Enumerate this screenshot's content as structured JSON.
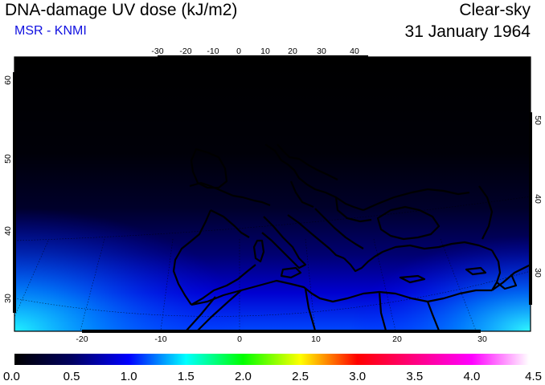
{
  "header": {
    "title": "DNA-damage UV dose (kJ/m2)",
    "source": "MSR - KNMI",
    "condition": "Clear-sky",
    "date": "31 January 1964"
  },
  "map": {
    "top_lon_labels": [
      "-30",
      "-20",
      "-10",
      "0",
      "10",
      "20",
      "30",
      "40"
    ],
    "bottom_lon_labels": [
      "-20",
      "-10",
      "0",
      "10",
      "20",
      "30"
    ],
    "left_lat_labels": [
      "60",
      "50",
      "40",
      "30"
    ],
    "right_lat_labels": [
      "50",
      "40",
      "30"
    ]
  },
  "colorbar": {
    "labels": [
      "0.0",
      "0.5",
      "1.0",
      "1.5",
      "2.0",
      "2.5",
      "3.0",
      "3.5",
      "4.0",
      "4.5"
    ],
    "colors": [
      "#000000",
      "#000060",
      "#0000ff",
      "#00ffff",
      "#00ff00",
      "#ffff00",
      "#ff0000",
      "#ff0080",
      "#ff00ff",
      "#ffffff"
    ]
  }
}
